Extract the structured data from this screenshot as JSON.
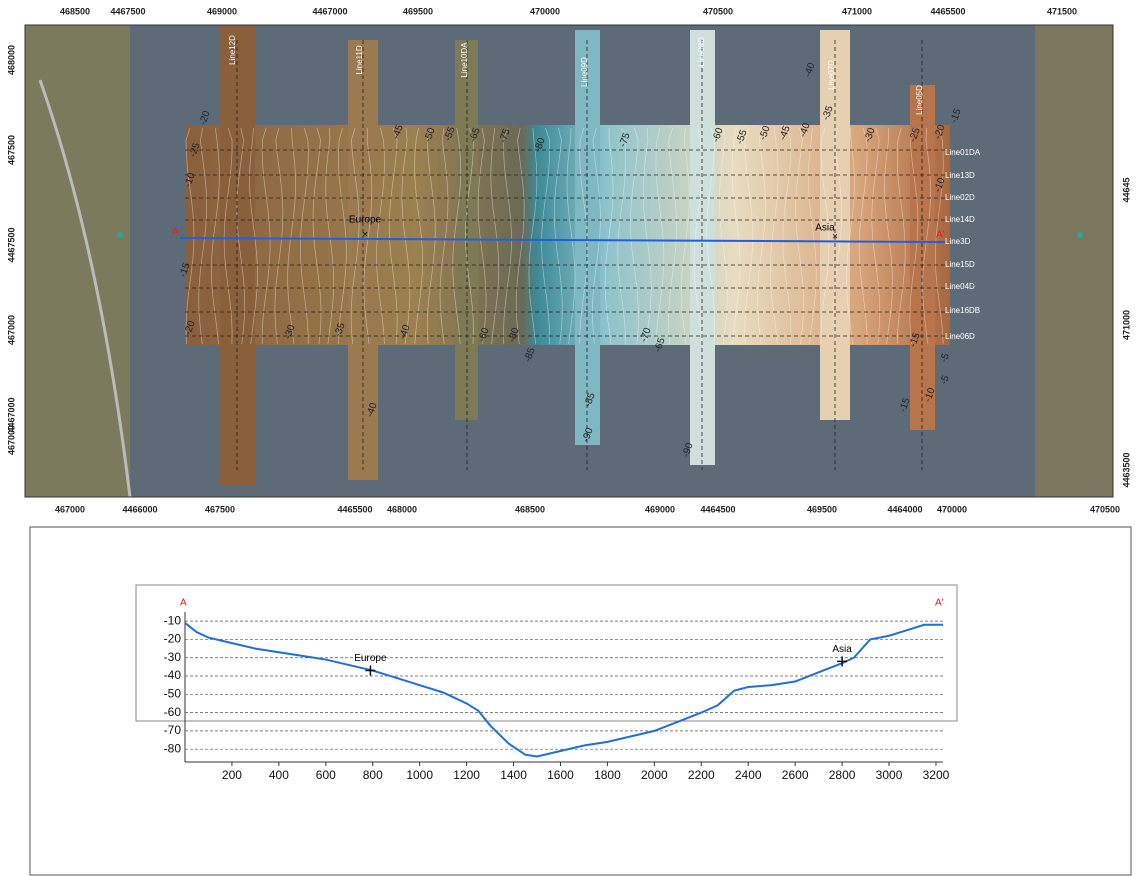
{
  "map": {
    "top_labels": [
      "468500",
      "4467500",
      "469000",
      "4467000",
      "469500",
      "470000",
      "470500",
      "471000",
      "4465500",
      "471500"
    ],
    "bottom_labels": [
      "467000",
      "4466000",
      "467500",
      "4465500",
      "468000",
      "468500",
      "469000",
      "4464500",
      "469500",
      "4464000",
      "470000",
      "470500"
    ],
    "left_labels": [
      "468000",
      "467500",
      "4467500",
      "467000",
      "4467000",
      "467000"
    ],
    "right_labels": [
      "44645",
      "471000",
      "4463500"
    ],
    "vertical_lines": [
      "Line12D",
      "Line11D",
      "Line10DA",
      "Line09D",
      "Line08D",
      "Line07D",
      "Line05D"
    ],
    "horizontal_lines": [
      "Line01DA",
      "Line13D",
      "Line02D",
      "Line14D",
      "Line3D",
      "Line15D",
      "Line04D",
      "Line16DB",
      "Line06D"
    ],
    "contour_labels": [
      "-20",
      "-25",
      "-10",
      "-45",
      "-50",
      "-55",
      "-65",
      "-75",
      "-80",
      "-75",
      "-60",
      "-55",
      "-50",
      "-45",
      "-40",
      "-35",
      "-30",
      "-25",
      "-20",
      "-15",
      "-40",
      "-10",
      "-15",
      "-20",
      "-30",
      "-35",
      "-40",
      "-60",
      "-80",
      "-85",
      "-70",
      "-65",
      "-15",
      "-5",
      "-5",
      "-10",
      "-15",
      "-85",
      "-90",
      "-90",
      "-40"
    ],
    "section_start": "A",
    "section_end": "A'",
    "europe": "Europe",
    "asia": "Asia"
  },
  "chart_data": {
    "type": "line",
    "start_label": "A",
    "end_label": "A'",
    "series": [
      {
        "color": "#1f6fd8",
        "x": [
          0,
          50,
          100,
          200,
          300,
          400,
          500,
          600,
          700,
          800,
          900,
          1000,
          1100,
          1200,
          1250,
          1300,
          1380,
          1450,
          1500,
          1600,
          1700,
          1800,
          1900,
          2000,
          2100,
          2200,
          2270,
          2340,
          2400,
          2500,
          2600,
          2700,
          2800,
          2850,
          2920,
          3000,
          3100,
          3150,
          3230
        ],
        "values": [
          -11,
          -16,
          -19,
          -22,
          -25,
          -27,
          -29,
          -31,
          -34,
          -37,
          -41,
          -45,
          -49,
          -55,
          -59,
          -67,
          -77,
          -83,
          -84,
          -81,
          -78,
          -76,
          -73,
          -70,
          -65,
          -60,
          -56,
          -48,
          -46,
          -45,
          -43,
          -38,
          -33,
          -30,
          -20,
          -18,
          -14,
          -12,
          -12
        ]
      }
    ],
    "markers": [
      {
        "label": "Europe",
        "x": 790,
        "y": -37
      },
      {
        "label": "Asia",
        "x": 2800,
        "y": -32
      }
    ],
    "xlim": [
      0,
      3230
    ],
    "ylim": [
      -87,
      -5
    ],
    "xticks": [
      200,
      400,
      600,
      800,
      1000,
      1200,
      1400,
      1600,
      1800,
      2000,
      2200,
      2400,
      2600,
      2800,
      3000,
      3200
    ],
    "yticks": [
      -10,
      -20,
      -30,
      -40,
      -50,
      -60,
      -70,
      -80
    ],
    "grid": true
  }
}
